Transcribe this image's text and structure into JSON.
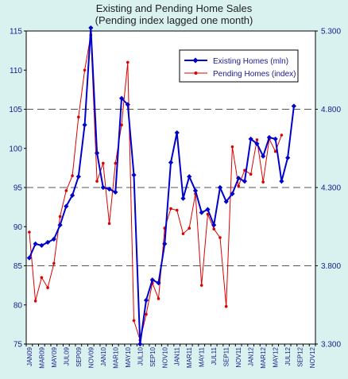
{
  "chart_data": {
    "type": "line",
    "title": "Existing and Pending Home Sales",
    "subtitle": "(Pending index lagged one month)",
    "x_tick_labels": [
      "JAN09",
      "MAR09",
      "MAY09",
      "JUL09",
      "SEP09",
      "NOV09",
      "JAN10",
      "MAR10",
      "MAY10",
      "JUL10",
      "SEP10",
      "NOV10",
      "JAN11",
      "MAR11",
      "MAY11",
      "JUL11",
      "SEP11",
      "NOV11",
      "JAN12",
      "MAR12",
      "MAY12",
      "JUL12",
      "SEP12",
      "NOV12"
    ],
    "x_month_count": 47,
    "y_left": {
      "min": 75,
      "max": 115,
      "ticks": [
        75,
        80,
        85,
        90,
        95,
        100,
        105,
        110,
        115
      ]
    },
    "y_right": {
      "min": 3.3,
      "max": 5.3,
      "ticks": [
        "3.300",
        "3.800",
        "4.300",
        "4.800",
        "5.300"
      ]
    },
    "grid": "dashed horizontal at 5.300, 4.800, 4.300, 3.800",
    "legend_position": "top-right",
    "colors": {
      "existing": "#0000cc",
      "pending": "#dd0000",
      "background": "#d9f2f0",
      "plot": "#ffffff"
    },
    "series": [
      {
        "name": "Existing Homes (mln)",
        "axis": "right",
        "values": [
          3.85,
          3.94,
          3.93,
          3.95,
          3.97,
          4.06,
          4.18,
          4.25,
          4.37,
          4.7,
          5.32,
          4.52,
          4.3,
          4.29,
          4.27,
          4.87,
          4.83,
          4.38,
          3.3,
          3.58,
          3.71,
          3.69,
          3.94,
          4.46,
          4.65,
          4.23,
          4.37,
          4.28,
          4.14,
          4.16,
          4.06,
          4.3,
          4.21,
          4.26,
          4.36,
          4.34,
          4.61,
          4.58,
          4.5,
          4.62,
          4.61,
          4.34,
          4.49,
          4.82
        ]
      },
      {
        "name": "Pending Homes (index)",
        "axis": "left",
        "values": [
          89.3,
          80.5,
          83.5,
          82.2,
          85.3,
          91.3,
          94.6,
          96.5,
          104.0,
          110.0,
          114.5,
          95.8,
          98.1,
          90.4,
          98.1,
          103.0,
          111.0,
          78.0,
          75.5,
          78.8,
          82.8,
          80.8,
          89.8,
          92.3,
          92.1,
          89.1,
          89.8,
          94.2,
          82.5,
          91.6,
          89.7,
          88.6,
          79.8,
          100.2,
          95.2,
          97.2,
          96.7,
          101.1,
          95.7,
          101.2,
          99.6,
          101.7
        ]
      }
    ]
  }
}
